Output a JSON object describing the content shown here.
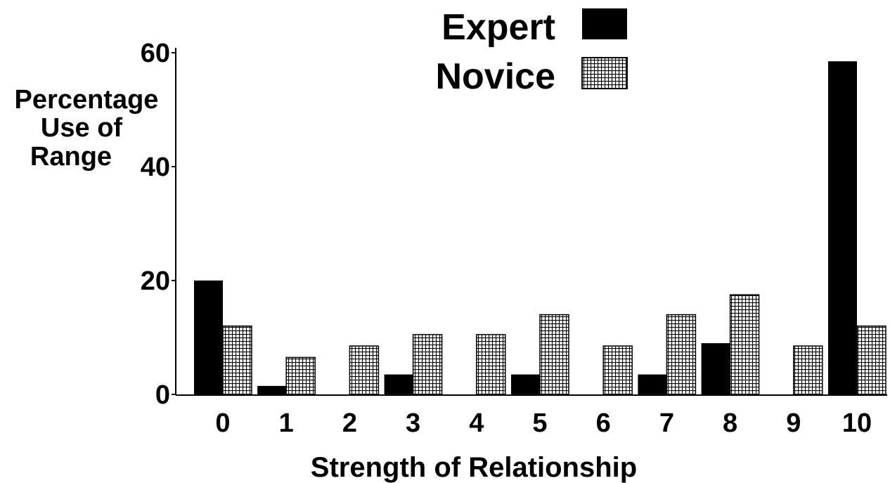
{
  "chart_data": {
    "type": "bar",
    "title": "",
    "xlabel": "Strength of Relationship",
    "ylabel_lines": [
      "Percentage",
      "Use of",
      "Range"
    ],
    "categories": [
      "0",
      "1",
      "2",
      "3",
      "4",
      "5",
      "6",
      "7",
      "8",
      "9",
      "10"
    ],
    "yticks": [
      "0",
      "20",
      "40",
      "60"
    ],
    "ylim": [
      0,
      60
    ],
    "legend_position": "top",
    "series": [
      {
        "name": "Expert",
        "fill": "solid",
        "color": "#000000",
        "values": [
          20,
          1.5,
          0,
          3.5,
          0,
          3.5,
          0,
          3.5,
          9,
          0,
          58.5
        ]
      },
      {
        "name": "Novice",
        "fill": "crosshatch",
        "color": "#000000",
        "values": [
          12,
          6.5,
          8.5,
          10.5,
          10.5,
          14,
          8.5,
          14,
          17.5,
          8.5,
          12
        ]
      }
    ]
  }
}
